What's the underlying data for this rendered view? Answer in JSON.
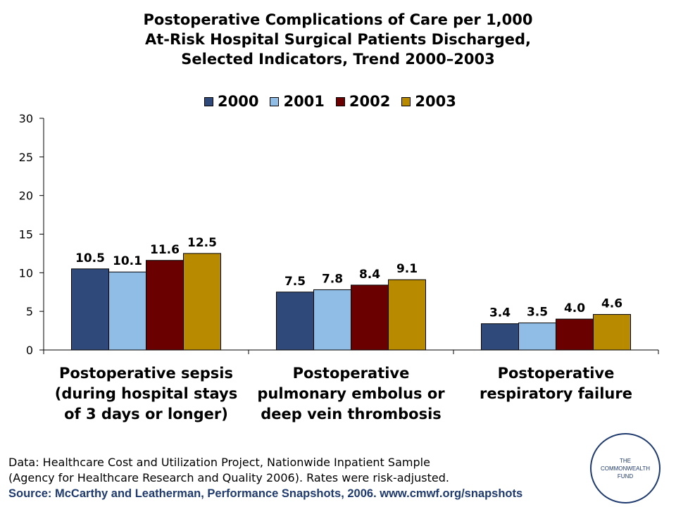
{
  "title": {
    "line1": "Postoperative Complications of Care per 1,000",
    "line2": "At-Risk Hospital Surgical Patients Discharged,",
    "line3": "Selected Indicators, Trend 2000–2003"
  },
  "colors": {
    "2000": "#2f4a7a",
    "2001": "#8fbde6",
    "2002": "#6b0000",
    "2003": "#b88a00"
  },
  "chart_data": {
    "type": "bar",
    "categories": [
      [
        "Postoperative sepsis",
        "(during hospital stays",
        "of 3 days or longer)"
      ],
      [
        "Postoperative",
        "pulmonary embolus or",
        "deep vein thrombosis"
      ],
      [
        "Postoperative",
        "respiratory failure"
      ]
    ],
    "series": [
      {
        "name": "2000",
        "values": [
          10.5,
          7.5,
          3.4
        ],
        "labels": [
          "10.5",
          "7.5",
          "3.4"
        ]
      },
      {
        "name": "2001",
        "values": [
          10.1,
          7.8,
          3.5
        ],
        "labels": [
          "10.1",
          "7.8",
          "3.5"
        ]
      },
      {
        "name": "2002",
        "values": [
          11.6,
          8.4,
          4.0
        ],
        "labels": [
          "11.6",
          "8.4",
          "4.0"
        ]
      },
      {
        "name": "2003",
        "values": [
          12.5,
          9.1,
          4.6
        ],
        "labels": [
          "12.5",
          "9.1",
          "4.6"
        ]
      }
    ],
    "ylim": [
      0,
      30
    ],
    "yticks": [
      0,
      5,
      10,
      15,
      20,
      25,
      30
    ],
    "grid": false,
    "legend": "top"
  },
  "notes": {
    "line1": "Data: Healthcare Cost and Utilization Project, Nationwide Inpatient Sample",
    "line2": "(Agency for Healthcare Research and Quality 2006). Rates were risk-adjusted.",
    "source": "Source: McCarthy and Leatherman, Performance Snapshots, 2006. www.cmwf.org/snapshots"
  },
  "logo": {
    "line1": "THE",
    "line2": "COMMONWEALTH",
    "line3": "FUND"
  }
}
